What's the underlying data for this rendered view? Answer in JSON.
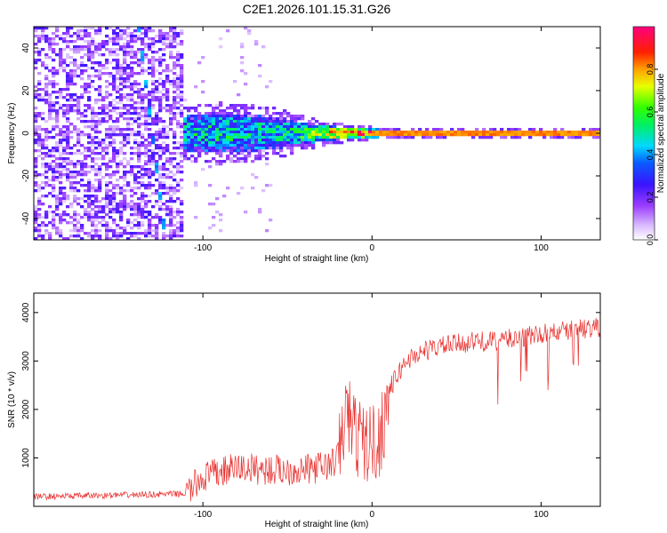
{
  "title": "C2E1.2026.101.15.31.G26",
  "chart_data": [
    {
      "type": "heatmap",
      "xlabel": "Height of straight line (km)",
      "ylabel": "Frequency (Hz)",
      "xlim": [
        -200,
        135
      ],
      "ylim": [
        -50,
        50
      ],
      "xticks": [
        -100,
        0,
        100
      ],
      "xtick_labels": [
        "-100",
        "0",
        "100"
      ],
      "yticks": [
        -40,
        -20,
        0,
        20,
        40
      ],
      "ytick_labels": [
        "-40",
        "-20",
        "0",
        "20",
        "40"
      ],
      "colorbar": {
        "label": "Normalized spectral amplitude",
        "range": [
          0,
          1
        ],
        "ticks": [
          0,
          0.2,
          0.4,
          0.6,
          0.8
        ],
        "tick_labels": [
          "0.0",
          "0.2",
          "0.4",
          "0.6",
          "0.8"
        ],
        "colormap": "rainbow (white, purple, blue, cyan, green, yellow, red, magenta)"
      },
      "features": [
        {
          "kind": "diffuse noise",
          "x_range": [
            -200,
            -112
          ],
          "freq_range": [
            -50,
            50
          ],
          "amplitude": 0.15
        },
        {
          "kind": "drifting streak",
          "x": [
            -138,
            -122
          ],
          "freq": [
            50,
            -50
          ],
          "amplitude": 0.35
        },
        {
          "kind": "band",
          "x": [
            -112,
            -90,
            -60,
            -40,
            -20,
            0,
            20,
            135
          ],
          "halfwidth_hz": [
            8,
            9,
            8,
            5,
            3,
            2,
            1.5,
            1.5
          ],
          "amplitude": [
            0.35,
            0.4,
            0.35,
            0.45,
            0.7,
            0.85,
            0.9,
            0.9
          ]
        }
      ]
    },
    {
      "type": "line",
      "xlabel": "Height of straight line (km)",
      "ylabel": "SNR (10 * v/v)",
      "xlim": [
        -200,
        135
      ],
      "ylim": [
        0,
        4400
      ],
      "xticks": [
        -100,
        0,
        100
      ],
      "xtick_labels": [
        "-100",
        "0",
        "100"
      ],
      "yticks": [
        1000,
        2000,
        3000,
        4000
      ],
      "ytick_labels": [
        "1000",
        "2000",
        "3000",
        "4000"
      ],
      "series": [
        {
          "color": "#e8302e",
          "x": [
            -200,
            -150,
            -110,
            -100,
            -80,
            -60,
            -40,
            -25,
            -20,
            -15,
            -10,
            -5,
            0,
            5,
            10,
            20,
            30,
            40,
            50,
            60,
            70,
            80,
            90,
            100,
            110,
            120,
            135
          ],
          "y": [
            200,
            230,
            260,
            600,
            800,
            750,
            750,
            850,
            1000,
            2000,
            1500,
            1300,
            1300,
            1400,
            2400,
            3000,
            3200,
            3300,
            3350,
            3400,
            3400,
            3450,
            3500,
            3550,
            3600,
            3650,
            3700
          ]
        }
      ]
    }
  ]
}
